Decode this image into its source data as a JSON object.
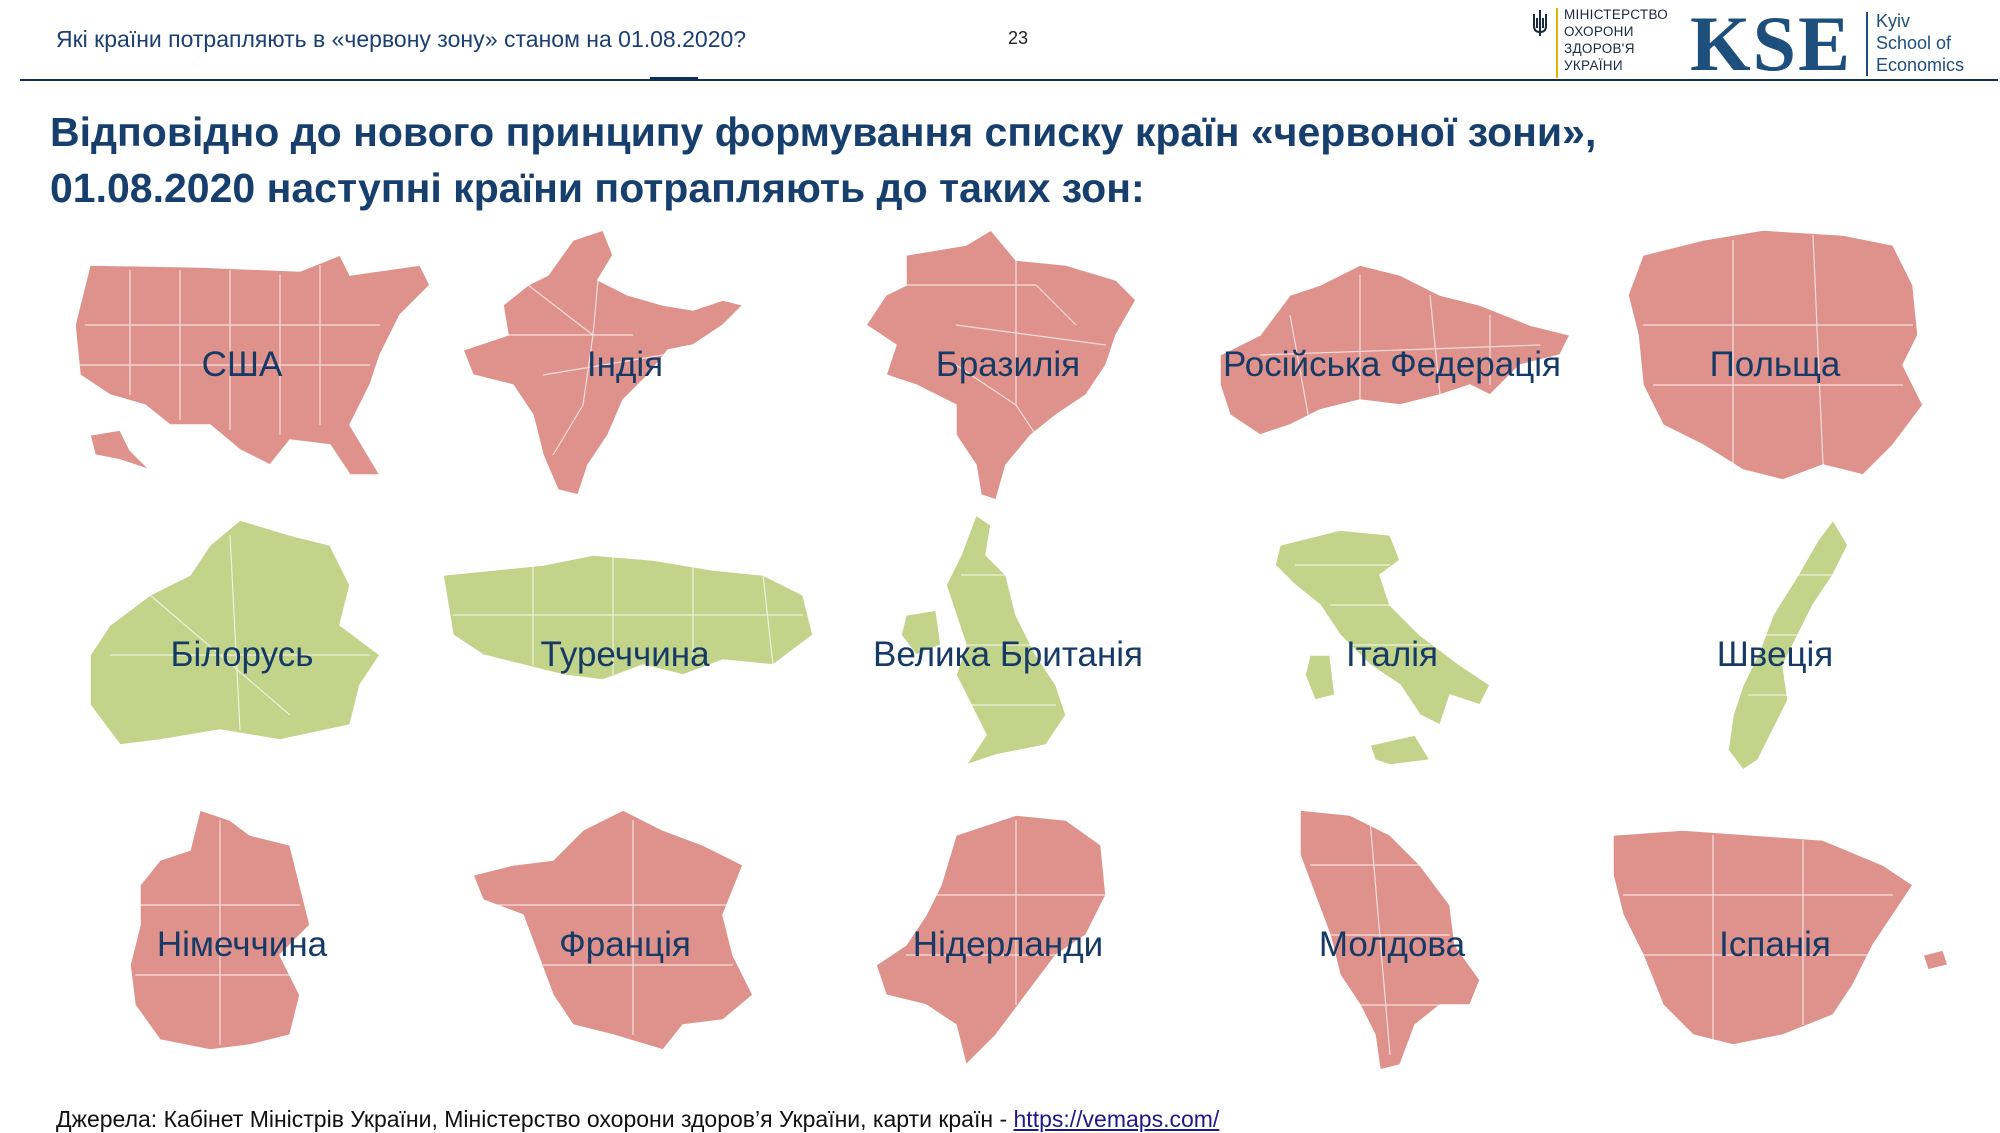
{
  "header": {
    "question": "Які країни потрапляють в «червону зону» станом на 01.08.2020?",
    "page_number": "23"
  },
  "logos": {
    "moh_lines": [
      "МІНІСТЕРСТВО",
      "ОХОРОНИ",
      "ЗДОРОВ'Я",
      "УКРАЇНИ"
    ],
    "kse_letters": "KSE",
    "kse_name_lines": [
      "Kyiv",
      "School of",
      "Economics"
    ],
    "colors": {
      "moh_accent": "#e2b400",
      "kse_blue": "#1d4f7c"
    }
  },
  "title_lines": [
    "Відповідно до нового принципу формування списку країн «червоної зони»,",
    "01.08.2020 наступні країни потрапляють до таких зон:"
  ],
  "zone_colors": {
    "red": "#df918b",
    "green": "#c2d38a"
  },
  "countries": [
    {
      "label": "США",
      "zone": "red",
      "shape": "usa-map-icon"
    },
    {
      "label": "Індія",
      "zone": "red",
      "shape": "india-map-icon"
    },
    {
      "label": "Бразилія",
      "zone": "red",
      "shape": "brazil-map-icon"
    },
    {
      "label": "Російська Федерація",
      "zone": "red",
      "shape": "russia-map-icon"
    },
    {
      "label": "Польща",
      "zone": "red",
      "shape": "poland-map-icon"
    },
    {
      "label": "Білорусь",
      "zone": "green",
      "shape": "belarus-map-icon"
    },
    {
      "label": "Туреччина",
      "zone": "green",
      "shape": "turkey-map-icon"
    },
    {
      "label": "Велика Британія",
      "zone": "green",
      "shape": "uk-map-icon"
    },
    {
      "label": "Італія",
      "zone": "green",
      "shape": "italy-map-icon"
    },
    {
      "label": "Швеція",
      "zone": "green",
      "shape": "sweden-map-icon"
    },
    {
      "label": "Німеччина",
      "zone": "red",
      "shape": "germany-map-icon"
    },
    {
      "label": "Франція",
      "zone": "red",
      "shape": "france-map-icon"
    },
    {
      "label": "Нідерланди",
      "zone": "red",
      "shape": "netherlands-map-icon"
    },
    {
      "label": "Молдова",
      "zone": "red",
      "shape": "moldova-map-icon"
    },
    {
      "label": "Іспанія",
      "zone": "red",
      "shape": "spain-map-icon"
    }
  ],
  "source": {
    "text": "Джерела: Кабінет Міністрів України, Міністерство охорони здоров’я України, карти країн - ",
    "link_text": "https://vemaps.com/"
  }
}
